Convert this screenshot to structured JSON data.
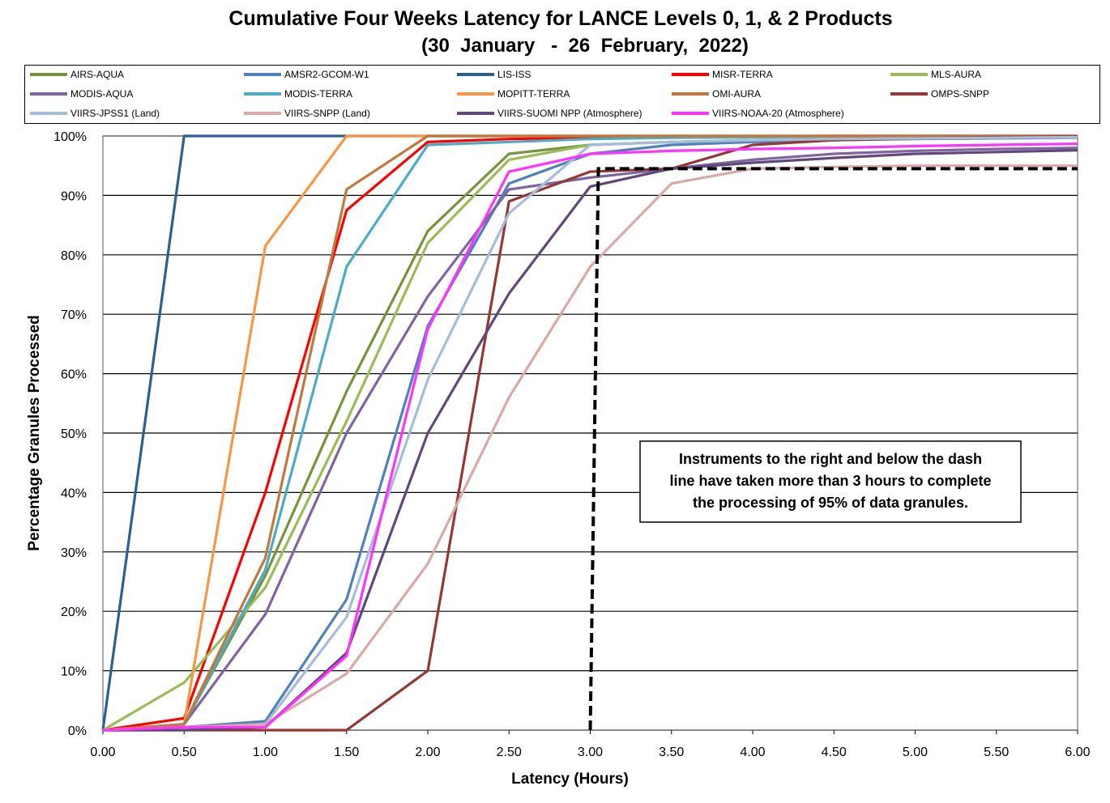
{
  "chart_data": {
    "type": "line",
    "title": "Cumulative Four Weeks Latency  for LANCE Levels 0, 1, & 2 Products",
    "subtitle": "(30  January   -  26  February,  2022)",
    "xlabel": "Latency (Hours)",
    "ylabel": "Percentage Granules Processed",
    "xlim": [
      0,
      6
    ],
    "ylim": [
      0,
      100
    ],
    "x_ticks": [
      "0.00",
      "0.50",
      "1.00",
      "1.50",
      "2.00",
      "2.50",
      "3.00",
      "3.50",
      "4.00",
      "4.50",
      "5.00",
      "5.50",
      "6.00"
    ],
    "y_ticks": [
      "0%",
      "10%",
      "20%",
      "30%",
      "40%",
      "50%",
      "60%",
      "70%",
      "80%",
      "90%",
      "100%"
    ],
    "grid": "horizontal",
    "legend_position": "top",
    "x": [
      0,
      0.5,
      1,
      1.5,
      2,
      2.5,
      3,
      3.5,
      4,
      4.5,
      5,
      5.5,
      6
    ],
    "series": [
      {
        "name": "AIRS-AQUA",
        "color": "#77933c",
        "values": [
          0,
          1,
          26,
          57,
          84,
          97,
          98.5,
          99,
          99.3,
          99.5,
          99.6,
          99.7,
          99.8
        ]
      },
      {
        "name": "AMSR2-GCOM-W1",
        "color": "#4f81bd",
        "values": [
          0,
          0.5,
          1.5,
          22,
          68,
          92,
          97,
          98.5,
          99,
          99.3,
          99.5,
          99.6,
          99.7
        ]
      },
      {
        "name": "LIS-ISS",
        "color": "#2d5f8f",
        "values": [
          0,
          100,
          100,
          100,
          100,
          100,
          100,
          100,
          100,
          100,
          100,
          100,
          100
        ]
      },
      {
        "name": "MISR-TERRA",
        "color": "#ff0000",
        "values": [
          0,
          2,
          40,
          87.5,
          99,
          99.5,
          99.7,
          99.8,
          99.9,
          100,
          100,
          100,
          100
        ]
      },
      {
        "name": "MLS-AURA",
        "color": "#9bbb59",
        "values": [
          0,
          8,
          24,
          52,
          82,
          96,
          98.5,
          99,
          99.3,
          99.5,
          99.6,
          99.7,
          99.8
        ]
      },
      {
        "name": "MODIS-AQUA",
        "color": "#8064a2",
        "values": [
          0,
          1,
          19.5,
          50,
          73,
          91,
          93,
          94.5,
          96,
          97,
          97.5,
          97.8,
          98
        ]
      },
      {
        "name": "MODIS-TERRA",
        "color": "#4bacc6",
        "values": [
          0,
          1,
          27,
          78,
          98.5,
          99,
          99.5,
          99.7,
          99.8,
          99.9,
          100,
          100,
          100
        ]
      },
      {
        "name": "MOPITT-TERRA",
        "color": "#f79646",
        "values": [
          0,
          1,
          81.5,
          100,
          100,
          100,
          100,
          100,
          100,
          100,
          100,
          100,
          100
        ]
      },
      {
        "name": "OMI-AURA",
        "color": "#c0783c",
        "values": [
          0,
          1,
          29,
          91,
          100,
          100,
          100,
          100,
          100,
          100,
          100,
          100,
          100
        ]
      },
      {
        "name": "OMPS-SNPP",
        "color": "#953735",
        "values": [
          0,
          0,
          0,
          0,
          10,
          89,
          94,
          94.5,
          98.5,
          99.3,
          99.6,
          99.8,
          99.9
        ]
      },
      {
        "name": "VIIRS-JPSS1 (Land)",
        "color": "#a6bcd8",
        "values": [
          0,
          0.5,
          1,
          19,
          59,
          87,
          98.5,
          99,
          99.3,
          99.5,
          99.6,
          99.7,
          99.8
        ]
      },
      {
        "name": "VIIRS-SNPP (Land)",
        "color": "#d9aaa5",
        "values": [
          0,
          0.5,
          1,
          9.5,
          28,
          56,
          78,
          92,
          94.5,
          94.8,
          95,
          95,
          95
        ]
      },
      {
        "name": "VIIRS-SUOMI NPP (Atmosphere)",
        "color": "#60497a",
        "values": [
          0,
          0,
          0.5,
          13,
          50,
          73.5,
          91.5,
          94.5,
          95.5,
          96.3,
          97,
          97.3,
          97.6
        ]
      },
      {
        "name": "VIIRS-NOAA-20 (Atmosphere)",
        "color": "#ff33ff",
        "values": [
          0,
          0.5,
          0.5,
          12.5,
          67.5,
          94,
          97,
          97.5,
          97.8,
          98,
          98.3,
          98.5,
          98.7
        ]
      }
    ],
    "threshold_line": {
      "style": "dashed",
      "color": "#000000",
      "x": [
        3.0,
        3.05,
        6.0
      ],
      "y": [
        0,
        94.5,
        94.5
      ]
    },
    "annotation": "Instruments to the right and below the dash line have taken more than 3 hours to complete the processing of 95% of data granules."
  }
}
